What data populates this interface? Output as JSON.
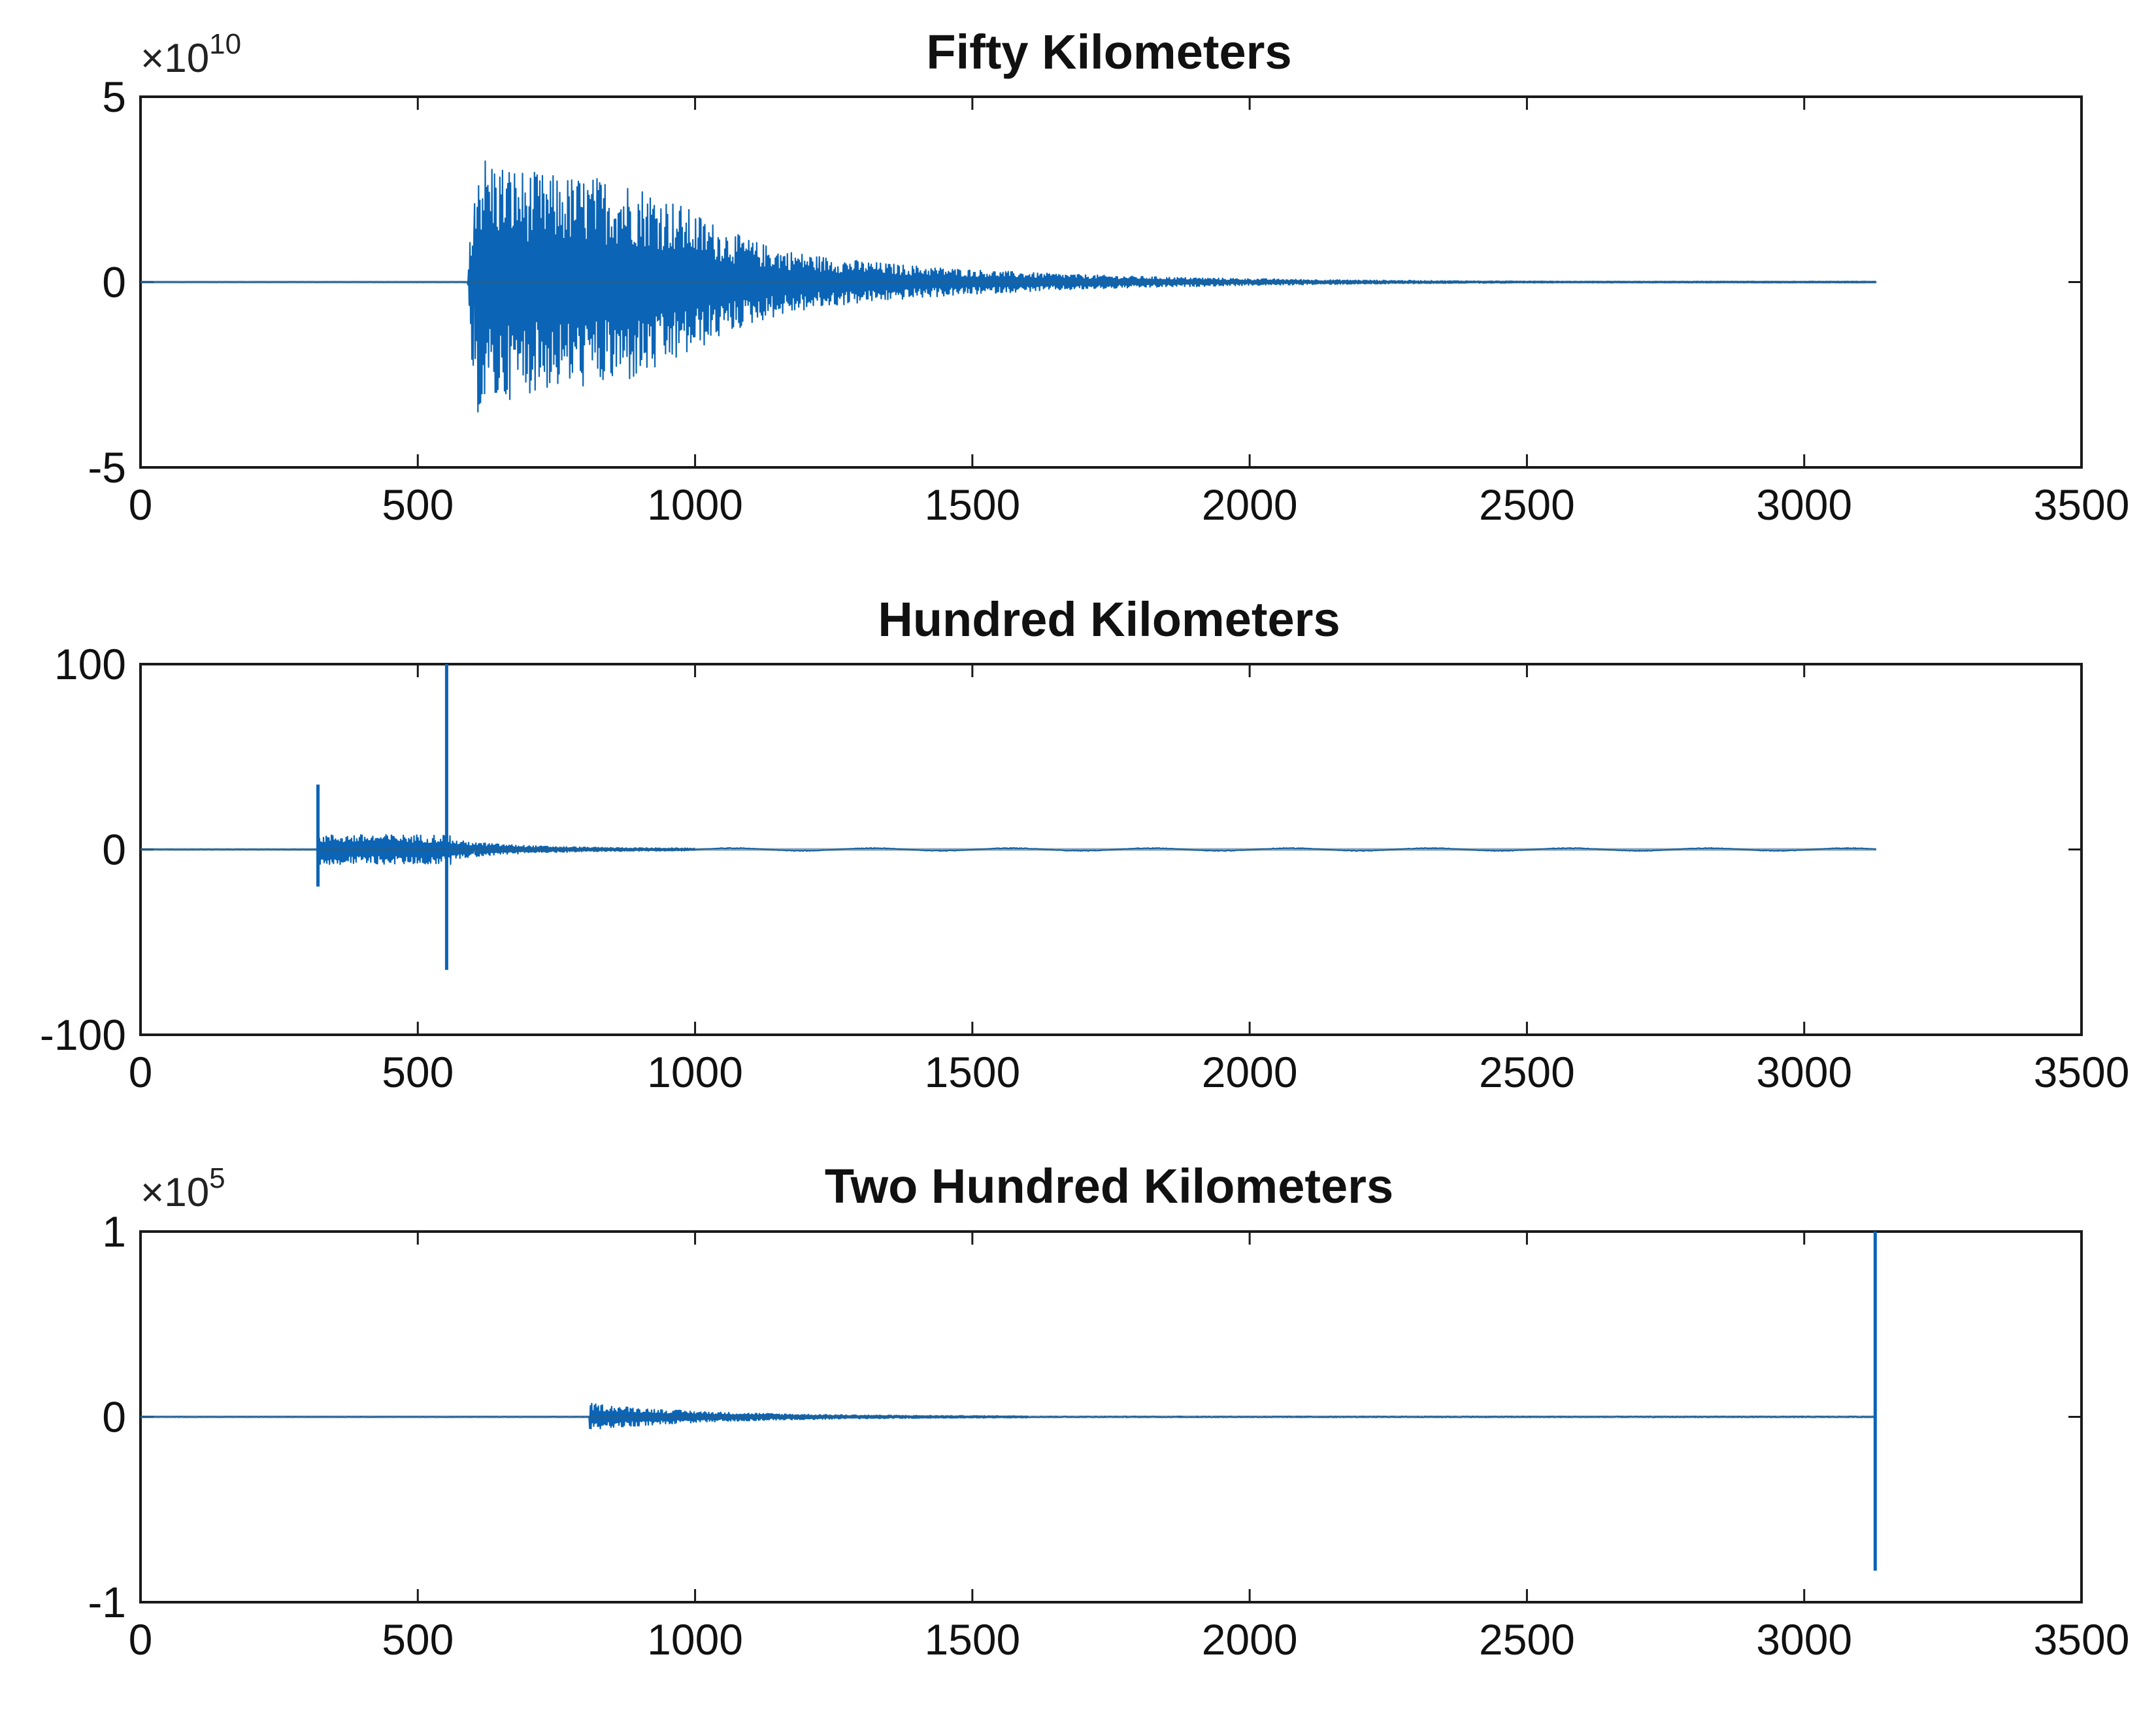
{
  "chart_data": [
    {
      "type": "line",
      "title": "Fifty Kilometers",
      "xlim": [
        0,
        3500
      ],
      "ylim": [
        -5,
        5
      ],
      "xticks": [
        0,
        500,
        1000,
        1500,
        2000,
        2500,
        3000,
        3500
      ],
      "xtick_labels": [
        "0",
        "500",
        "1000",
        "1500",
        "2000",
        "2500",
        "3000",
        "3500"
      ],
      "yticks": [
        -5,
        0,
        5
      ],
      "ytick_labels": [
        "-5",
        "0",
        "5"
      ],
      "y_multiplier": {
        "base": "×10",
        "exponent": "10"
      },
      "xlabel": "",
      "ylabel": "",
      "grid": false,
      "line_color": "#0b64b5",
      "series": [
        {
          "signal": "decaying-oscillation",
          "x_end": 3130,
          "onset_x": 590,
          "peak_x": 620,
          "peak_y": 3.7,
          "min_y": -3.5,
          "decay_to_x": 2100,
          "secondary_bumps": [
            {
              "x": 890,
              "y": 1.6
            }
          ]
        }
      ]
    },
    {
      "type": "line",
      "title": "Hundred Kilometers",
      "xlim": [
        0,
        3500
      ],
      "ylim": [
        -100,
        100
      ],
      "xticks": [
        0,
        500,
        1000,
        1500,
        2000,
        2500,
        3000,
        3500
      ],
      "xtick_labels": [
        "0",
        "500",
        "1000",
        "1500",
        "2000",
        "2500",
        "3000",
        "3500"
      ],
      "yticks": [
        -100,
        0,
        100
      ],
      "ytick_labels": [
        "-100",
        "0",
        "100"
      ],
      "xlabel": "",
      "ylabel": "",
      "grid": false,
      "line_color": "#0b64b5",
      "series": [
        {
          "signal": "burst-with-spikes",
          "x_end": 3130,
          "burst_start_x": 320,
          "burst_end_x": 560,
          "burst_amplitude": 8,
          "spikes": [
            {
              "x": 320,
              "y_max": 35,
              "y_min": -20
            },
            {
              "x": 552,
              "y_max": 100,
              "y_min": -65
            }
          ],
          "tail_to_x": 1000
        }
      ]
    },
    {
      "type": "line",
      "title": "Two Hundred Kilometers",
      "xlim": [
        0,
        3500
      ],
      "ylim": [
        -1,
        1
      ],
      "xticks": [
        0,
        500,
        1000,
        1500,
        2000,
        2500,
        3000,
        3500
      ],
      "xtick_labels": [
        "0",
        "500",
        "1000",
        "1500",
        "2000",
        "2500",
        "3000",
        "3500"
      ],
      "yticks": [
        -1,
        0,
        1
      ],
      "ytick_labels": [
        "-1",
        "0",
        "1"
      ],
      "y_multiplier": {
        "base": "×10",
        "exponent": "5"
      },
      "xlabel": "",
      "ylabel": "",
      "grid": false,
      "line_color": "#0b64b5",
      "series": [
        {
          "signal": "small-burst-and-end-spike",
          "x_end": 3130,
          "burst_start_x": 810,
          "burst_amplitude": 0.07,
          "decay_to_x": 1600,
          "spikes": [
            {
              "x": 3128,
              "y_max": 1.0,
              "y_min": -0.83
            }
          ]
        }
      ]
    }
  ]
}
